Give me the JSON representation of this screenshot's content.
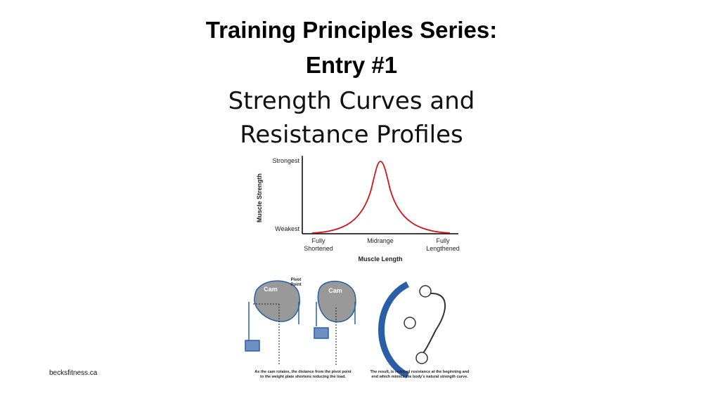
{
  "header": {
    "title": [
      "Training Principles Series:",
      "Entry #1"
    ],
    "subtitle": [
      "Strength Curves and",
      "Resistance Profiles"
    ]
  },
  "curve_chart": {
    "y_axis_title": "Muscle Strength",
    "y_top_label": "Strongest",
    "y_bottom_label": "Weakest",
    "x_labels": [
      [
        "Fully",
        "Shortened"
      ],
      [
        "Midrange"
      ],
      [
        "Fully",
        "Lengthened"
      ]
    ],
    "x_axis_title": "Muscle Length"
  },
  "cam_diagram": {
    "cam_label_1": "Cam",
    "cam_label_2": "Cam",
    "pivot_label": [
      "Pivot",
      "Point"
    ],
    "caption_left": [
      "As the cam rotates, the distance from the pivot point",
      "to the weight plate shortens reducing the load."
    ],
    "caption_right": [
      "The result, is reduced resistance at the beginning and",
      "end which mimics the body's natural strength curve."
    ]
  },
  "footer": {
    "site": "becksfitness.ca"
  }
}
